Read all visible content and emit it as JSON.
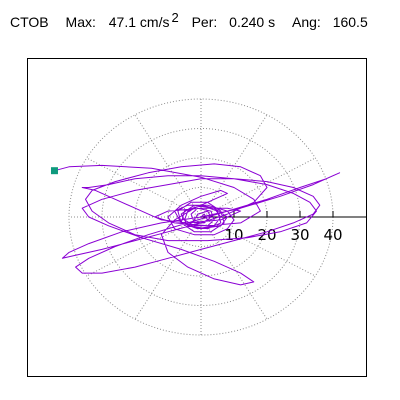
{
  "header": {
    "station": "CTOB",
    "max_label": "Max:",
    "max_value": "47.1 cm/s",
    "max_exponent": "2",
    "per_label": "Per:",
    "per_value": "0.240 s",
    "ang_label": "Ang:",
    "ang_value": "160.5"
  },
  "colors": {
    "trace": "#8a00d4",
    "marker": "#0f9a7d",
    "grid": "#8c8c8c",
    "frame": "#000000"
  },
  "chart_data": {
    "type": "polar-particle-motion",
    "radial_ticks": [
      "10",
      "20",
      "30",
      "40"
    ],
    "radial_tick_values": [
      10,
      20,
      30,
      40
    ],
    "max_radius": 40,
    "angular_grid_step_deg": 30,
    "grid": true,
    "max_amplitude": 47.1,
    "period_s": 0.24,
    "angle_deg": 160.5,
    "start_point": {
      "x": -44.4,
      "y": 15.7
    },
    "trace": [
      [
        -44.4,
        15.7
      ],
      [
        -40,
        17
      ],
      [
        -30,
        17.5
      ],
      [
        -15,
        16.5
      ],
      [
        0,
        13.5
      ],
      [
        10,
        10
      ],
      [
        16,
        6
      ],
      [
        18,
        2
      ],
      [
        12,
        -2
      ],
      [
        2,
        -3
      ],
      [
        -8,
        -2
      ],
      [
        -14,
        0
      ],
      [
        -10,
        2
      ],
      [
        0,
        3
      ],
      [
        8,
        3
      ],
      [
        12,
        2
      ],
      [
        6,
        -1
      ],
      [
        -4,
        -2
      ],
      [
        -12,
        -1
      ],
      [
        -18,
        2
      ],
      [
        -26,
        6
      ],
      [
        -32,
        9
      ],
      [
        -36,
        10
      ],
      [
        -34,
        10
      ],
      [
        -28,
        11
      ],
      [
        -20,
        13
      ],
      [
        -10,
        14
      ],
      [
        0,
        14
      ],
      [
        10,
        13
      ],
      [
        20,
        11
      ],
      [
        28,
        8
      ],
      [
        33,
        5
      ],
      [
        35,
        2
      ],
      [
        32,
        -2
      ],
      [
        24,
        -5
      ],
      [
        14,
        -7
      ],
      [
        2,
        -8
      ],
      [
        -10,
        -8
      ],
      [
        -20,
        -6
      ],
      [
        -28,
        -2
      ],
      [
        -33,
        2
      ],
      [
        -35,
        6
      ],
      [
        -33,
        9
      ],
      [
        -26,
        12
      ],
      [
        -16,
        15
      ],
      [
        -6,
        17
      ],
      [
        4,
        18
      ],
      [
        12,
        17
      ],
      [
        18,
        14
      ],
      [
        20,
        10
      ],
      [
        16,
        5
      ],
      [
        8,
        1
      ],
      [
        0,
        -2
      ],
      [
        -10,
        -5
      ],
      [
        -20,
        -8
      ],
      [
        -30,
        -11
      ],
      [
        -38,
        -13
      ],
      [
        -42,
        -14
      ],
      [
        -40,
        -12
      ],
      [
        -34,
        -9
      ],
      [
        -24,
        -5
      ],
      [
        -12,
        -2
      ],
      [
        0,
        0
      ],
      [
        12,
        3
      ],
      [
        24,
        7
      ],
      [
        34,
        11
      ],
      [
        40,
        14
      ],
      [
        42,
        15
      ],
      [
        38,
        13
      ],
      [
        30,
        10
      ],
      [
        20,
        6
      ],
      [
        8,
        2
      ],
      [
        -4,
        -2
      ],
      [
        -16,
        -6
      ],
      [
        -26,
        -10
      ],
      [
        -34,
        -14
      ],
      [
        -38,
        -17
      ],
      [
        -36,
        -19
      ],
      [
        -30,
        -19
      ],
      [
        -20,
        -17
      ],
      [
        -10,
        -14
      ],
      [
        0,
        -11
      ],
      [
        10,
        -8
      ],
      [
        20,
        -5
      ],
      [
        28,
        -2
      ],
      [
        34,
        1
      ],
      [
        36,
        4
      ],
      [
        34,
        7
      ],
      [
        28,
        10
      ],
      [
        20,
        12
      ],
      [
        10,
        13
      ],
      [
        0,
        13
      ],
      [
        -10,
        11
      ],
      [
        -20,
        9
      ],
      [
        -30,
        6
      ],
      [
        -36,
        3
      ],
      [
        -34,
        0
      ],
      [
        -28,
        -3
      ],
      [
        -18,
        -7
      ],
      [
        -6,
        -11
      ],
      [
        4,
        -15
      ],
      [
        12,
        -19
      ],
      [
        16,
        -22
      ],
      [
        12,
        -23
      ],
      [
        4,
        -21
      ],
      [
        -4,
        -17
      ],
      [
        -10,
        -12
      ],
      [
        -12,
        -6
      ],
      [
        -8,
        -1
      ],
      [
        -2,
        3
      ],
      [
        4,
        6
      ],
      [
        8,
        8
      ],
      [
        6,
        9
      ],
      [
        0,
        7
      ],
      [
        -6,
        4
      ],
      [
        -10,
        0
      ],
      [
        -8,
        -4
      ],
      [
        -2,
        -6
      ],
      [
        4,
        -6
      ],
      [
        8,
        -4
      ],
      [
        10,
        -1
      ],
      [
        8,
        2
      ],
      [
        2,
        4
      ],
      [
        -4,
        4
      ],
      [
        -8,
        2
      ],
      [
        -6,
        -2
      ],
      [
        0,
        -4
      ],
      [
        6,
        -3
      ],
      [
        8,
        0
      ],
      [
        4,
        3
      ],
      [
        -2,
        4
      ],
      [
        -6,
        1
      ],
      [
        -4,
        -3
      ],
      [
        2,
        -4
      ],
      [
        6,
        -2
      ],
      [
        5,
        2
      ],
      [
        0,
        4
      ],
      [
        -5,
        2
      ],
      [
        -6,
        -2
      ],
      [
        -2,
        -5
      ],
      [
        3,
        -5
      ],
      [
        7,
        -2
      ],
      [
        6,
        2
      ],
      [
        2,
        5
      ],
      [
        -3,
        5
      ],
      [
        -7,
        2
      ],
      [
        -6,
        -2
      ],
      [
        -1,
        -4
      ],
      [
        4,
        -3
      ],
      [
        6,
        0
      ],
      [
        4,
        3
      ],
      [
        0,
        4
      ],
      [
        -4,
        2
      ],
      [
        -5,
        -1
      ],
      [
        -2,
        -3
      ],
      [
        2,
        -3
      ],
      [
        4,
        -1
      ],
      [
        3,
        2
      ],
      [
        -1,
        3
      ],
      [
        -3,
        1
      ],
      [
        -2,
        -2
      ],
      [
        1,
        -2
      ],
      [
        3,
        0
      ],
      [
        2,
        2
      ],
      [
        -1,
        1
      ],
      [
        -2,
        -1
      ],
      [
        0,
        -2
      ],
      [
        2,
        -1
      ],
      [
        1,
        1
      ],
      [
        0,
        0
      ]
    ]
  }
}
